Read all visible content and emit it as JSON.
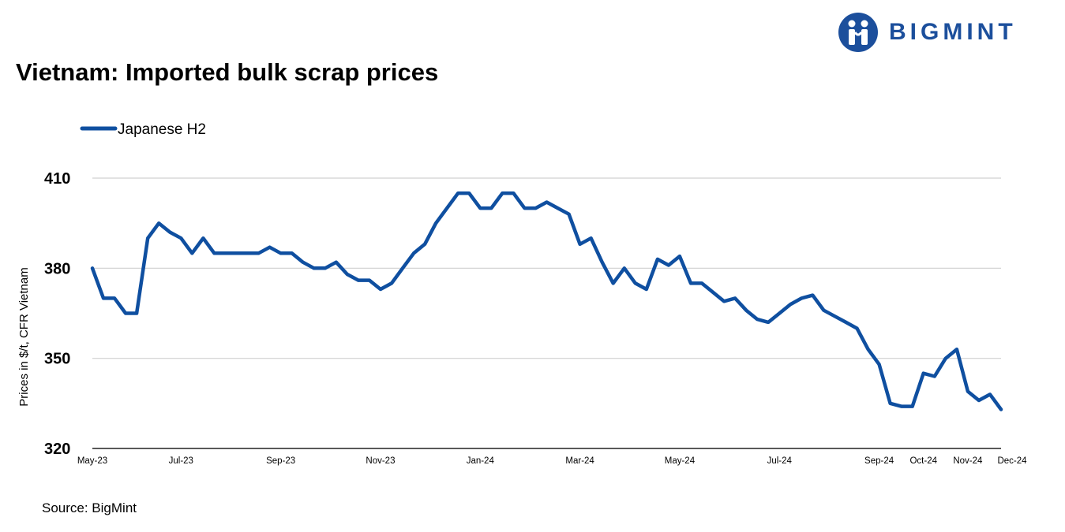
{
  "brand": {
    "name": "BIGMINT",
    "color": "#1c4f9c"
  },
  "source": "Source: BigMint",
  "chart_data": {
    "type": "line",
    "title": "Vietnam: Imported bulk scrap prices",
    "ylabel": "Prices in $/t, CFR Vietnam",
    "xlabel": "",
    "ylim": [
      320,
      410
    ],
    "yticks": [
      320,
      350,
      380,
      410
    ],
    "grid": true,
    "legend_position": "top-left",
    "x_tick_labels": [
      {
        "label": "May-23",
        "index": 0
      },
      {
        "label": "Jul-23",
        "index": 8
      },
      {
        "label": "Sep-23",
        "index": 17
      },
      {
        "label": "Nov-23",
        "index": 26
      },
      {
        "label": "Jan-24",
        "index": 35
      },
      {
        "label": "Mar-24",
        "index": 44
      },
      {
        "label": "May-24",
        "index": 53
      },
      {
        "label": "Jul-24",
        "index": 62
      },
      {
        "label": "Sep-24",
        "index": 71
      },
      {
        "label": "Oct-24",
        "index": 75
      },
      {
        "label": "Nov-24",
        "index": 79
      },
      {
        "label": "Dec-24",
        "index": 83
      }
    ],
    "series": [
      {
        "name": "Japanese H2",
        "color": "#0f4fa0",
        "values": [
          380,
          370,
          370,
          365,
          365,
          390,
          395,
          392,
          390,
          385,
          390,
          385,
          385,
          385,
          385,
          385,
          387,
          385,
          385,
          382,
          380,
          380,
          382,
          378,
          376,
          376,
          373,
          375,
          380,
          385,
          388,
          395,
          400,
          405,
          405,
          400,
          400,
          405,
          405,
          400,
          400,
          402,
          400,
          398,
          388,
          390,
          382,
          375,
          380,
          375,
          373,
          383,
          381,
          384,
          375,
          375,
          372,
          369,
          370,
          366,
          363,
          362,
          365,
          368,
          370,
          371,
          366,
          364,
          362,
          360,
          353,
          348,
          335,
          334,
          334,
          345,
          344,
          350,
          353,
          339,
          336,
          338,
          333
        ]
      }
    ]
  }
}
